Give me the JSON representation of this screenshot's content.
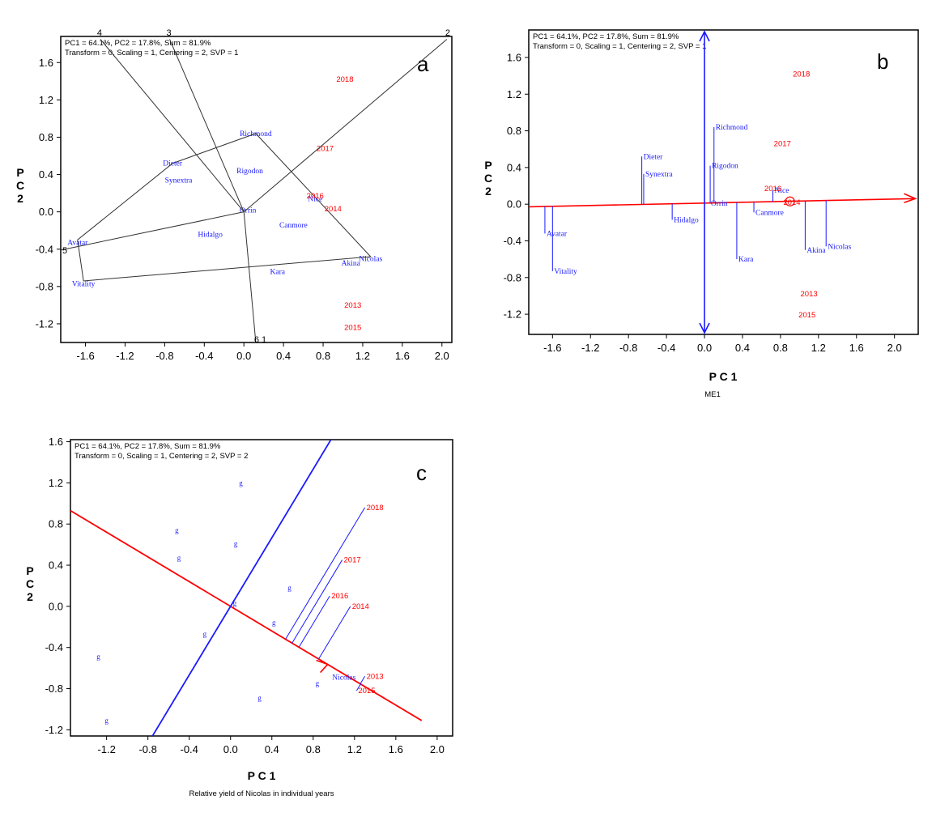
{
  "chart_data": [
    {
      "panel": "a",
      "type": "scatter",
      "subtype": "which-won-where polygon biplot",
      "info_line1": "PC1 = 64.1%, PC2 = 17.8%, Sum = 81.9%",
      "info_line2": "Transform = 0, Scaling = 1, Centering = 2, SVP = 1",
      "xlabel": "",
      "ylabel": "P C 2",
      "xlim": [
        -1.85,
        2.1
      ],
      "ylim": [
        -1.4,
        1.88
      ],
      "xticks": [
        "-1.6",
        "-1.2",
        "-0.8",
        "-0.4",
        "0.0",
        "0.4",
        "0.8",
        "1.2",
        "1.6",
        "2.0"
      ],
      "yticks": [
        "-1.2",
        "-0.8",
        "-0.4",
        "0.0",
        "0.4",
        "0.8",
        "1.2",
        "1.6"
      ],
      "genotypes": [
        {
          "name": "Richmond",
          "x": 0.12,
          "y": 0.84
        },
        {
          "name": "Dieter",
          "x": -0.72,
          "y": 0.52
        },
        {
          "name": "Synextra",
          "x": -0.66,
          "y": 0.34
        },
        {
          "name": "Rigodon",
          "x": 0.06,
          "y": 0.44
        },
        {
          "name": "Orrin",
          "x": 0.04,
          "y": 0.02
        },
        {
          "name": "Hidalgo",
          "x": -0.34,
          "y": -0.24
        },
        {
          "name": "Canmore",
          "x": 0.5,
          "y": -0.14
        },
        {
          "name": "Nice",
          "x": 0.72,
          "y": 0.14
        },
        {
          "name": "Akina",
          "x": 1.08,
          "y": -0.55
        },
        {
          "name": "Nicolas",
          "x": 1.28,
          "y": -0.5
        },
        {
          "name": "Kara",
          "x": 0.34,
          "y": -0.64
        },
        {
          "name": "Avatar",
          "x": -1.68,
          "y": -0.33
        },
        {
          "name": "Vitality",
          "x": -1.62,
          "y": -0.77
        }
      ],
      "environments": [
        {
          "name": "2018",
          "x": 1.02,
          "y": 1.42
        },
        {
          "name": "2017",
          "x": 0.82,
          "y": 0.68
        },
        {
          "name": "2016",
          "x": 0.72,
          "y": 0.17
        },
        {
          "name": "2014",
          "x": 0.9,
          "y": 0.03
        },
        {
          "name": "2013",
          "x": 1.1,
          "y": -1.0
        },
        {
          "name": "2015",
          "x": 1.1,
          "y": -1.24
        }
      ],
      "polygon": [
        {
          "x": 0.12,
          "y": 0.84
        },
        {
          "x": 1.28,
          "y": -0.48
        },
        {
          "x": -1.62,
          "y": -0.74
        },
        {
          "x": -1.68,
          "y": -0.3
        },
        {
          "x": -0.72,
          "y": 0.52
        }
      ],
      "rays": [
        {
          "x": -1.45,
          "y": 1.85,
          "label": "4"
        },
        {
          "x": -0.75,
          "y": 1.85,
          "label": "3"
        },
        {
          "x": 2.05,
          "y": 1.85,
          "label": "2"
        },
        {
          "x": -1.85,
          "y": -0.41,
          "label": "5"
        },
        {
          "x": 0.12,
          "y": -1.4,
          "label": "6 1"
        }
      ]
    },
    {
      "panel": "b",
      "type": "scatter",
      "subtype": "mean vs. stability (ATC) biplot",
      "info_line1": "PC1 = 64.1%, PC2 = 17.8%, Sum = 81.9%",
      "info_line2": "Transform = 0, Scaling = 1, Centering = 2, SVP = 1",
      "xlabel": "P C 1",
      "ylabel": "P C 2",
      "caption": "ME1",
      "xlim": [
        -1.85,
        2.25
      ],
      "ylim": [
        -1.42,
        1.9
      ],
      "xticks": [
        "-1.6",
        "-1.2",
        "-0.8",
        "-0.4",
        "0.0",
        "0.4",
        "0.8",
        "1.2",
        "1.6",
        "2.0"
      ],
      "yticks": [
        "-1.2",
        "-0.8",
        "-0.4",
        "0.0",
        "0.4",
        "0.8",
        "1.2",
        "1.6"
      ],
      "genotypes": [
        {
          "name": "Richmond",
          "x": 0.1,
          "y": 0.84
        },
        {
          "name": "Dieter",
          "x": -0.66,
          "y": 0.52
        },
        {
          "name": "Synextra",
          "x": -0.64,
          "y": 0.33
        },
        {
          "name": "Rigodon",
          "x": 0.06,
          "y": 0.42
        },
        {
          "name": "Orrin",
          "x": 0.05,
          "y": 0.01
        },
        {
          "name": "Hidalgo",
          "x": -0.34,
          "y": -0.17
        },
        {
          "name": "Canmore",
          "x": 0.52,
          "y": -0.09
        },
        {
          "name": "Nice",
          "x": 0.72,
          "y": 0.15
        },
        {
          "name": "Akina",
          "x": 1.06,
          "y": -0.5
        },
        {
          "name": "Nicolas",
          "x": 1.28,
          "y": -0.46
        },
        {
          "name": "Kara",
          "x": 0.34,
          "y": -0.6
        },
        {
          "name": "Avatar",
          "x": -1.68,
          "y": -0.32
        },
        {
          "name": "Vitality",
          "x": -1.6,
          "y": -0.73
        }
      ],
      "environments": [
        {
          "name": "2018",
          "x": 1.02,
          "y": 1.42
        },
        {
          "name": "2017",
          "x": 0.82,
          "y": 0.66
        },
        {
          "name": "2016",
          "x": 0.72,
          "y": 0.17
        },
        {
          "name": "2014",
          "x": 0.92,
          "y": 0.02
        },
        {
          "name": "2013",
          "x": 1.1,
          "y": -0.98
        },
        {
          "name": "2015",
          "x": 1.08,
          "y": -1.21
        }
      ],
      "aec_abscissa": {
        "slope": 0.022,
        "intercept": 0.012
      },
      "mean_environment": {
        "x": 0.9,
        "y": 0.03
      }
    },
    {
      "panel": "c",
      "type": "scatter",
      "subtype": "examine a genotype biplot",
      "info_line1": "PC1 = 64.1%, PC2 = 17.8%, Sum = 81.9%",
      "info_line2": "Transform = 0, Scaling = 1, Centering = 2, SVP = 2",
      "xlabel": "P C 1",
      "ylabel": "P C 2",
      "caption": "Relative yield of Nicolas in individual years",
      "xlim": [
        -1.55,
        2.15
      ],
      "ylim": [
        -1.26,
        1.62
      ],
      "xticks": [
        "-1.2",
        "-0.8",
        "-0.4",
        "0.0",
        "0.4",
        "0.8",
        "1.2",
        "1.6",
        "2.0"
      ],
      "yticks": [
        "-1.2",
        "-0.8",
        "-0.4",
        "0.0",
        "0.4",
        "0.8",
        "1.2",
        "1.6"
      ],
      "genotype_marker": "g",
      "genotypes": [
        {
          "x": 0.1,
          "y": 1.2
        },
        {
          "x": -0.52,
          "y": 0.74
        },
        {
          "x": -0.5,
          "y": 0.47
        },
        {
          "x": 0.05,
          "y": 0.61
        },
        {
          "x": 0.57,
          "y": 0.18
        },
        {
          "x": 0.04,
          "y": 0.03
        },
        {
          "x": 0.42,
          "y": -0.16
        },
        {
          "x": -0.25,
          "y": -0.27
        },
        {
          "x": -1.28,
          "y": -0.49
        },
        {
          "x": 0.84,
          "y": -0.75
        },
        {
          "x": 0.28,
          "y": -0.89
        },
        {
          "x": -1.2,
          "y": -1.11
        }
      ],
      "examined_genotype": {
        "name": "Nicolas",
        "x": 1.0,
        "y": -0.69
      },
      "environments": [
        {
          "name": "2018",
          "x": 1.3,
          "y": 0.96
        },
        {
          "name": "2017",
          "x": 1.08,
          "y": 0.45
        },
        {
          "name": "2016",
          "x": 0.96,
          "y": 0.1
        },
        {
          "name": "2014",
          "x": 1.16,
          "y": 0.0
        },
        {
          "name": "2013",
          "x": 1.3,
          "y": -0.68
        },
        {
          "name": "2015",
          "x": 1.22,
          "y": -0.82
        }
      ],
      "axis_slope": -0.6,
      "perp_slope": 1.667
    }
  ],
  "panel_letters": {
    "a": "a",
    "b": "b",
    "c": "c"
  }
}
